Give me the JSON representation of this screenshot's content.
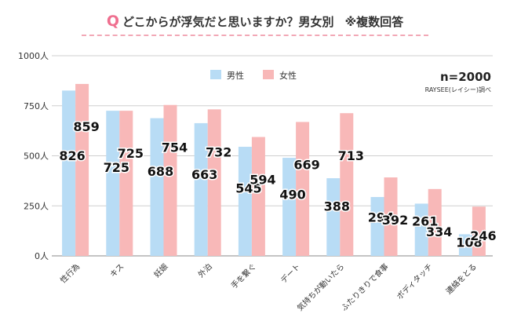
{
  "header": {
    "q_mark": "Q",
    "title": "どこからが浮気だと思いますか？男女別",
    "note": "※複数回答"
  },
  "sample": {
    "n": "n=2000",
    "source": "RAYSEE(レイシー)調べ"
  },
  "chart_data": {
    "type": "bar",
    "title": "どこからが浮気だと思いますか？男女別 ※複数回答",
    "categories": [
      "性行為",
      "キス",
      "妊娠",
      "外泊",
      "手を繋ぐ",
      "デート",
      "気持ちが動いたら",
      "ふたりきりで食事",
      "ボディタッチ",
      "連絡をとる"
    ],
    "series": [
      {
        "name": "男性",
        "color": "#b8dcf5",
        "values": [
          826,
          725,
          688,
          663,
          545,
          490,
          388,
          294,
          261,
          108
        ]
      },
      {
        "name": "女性",
        "color": "#f8b8b8",
        "values": [
          859,
          725,
          754,
          732,
          594,
          669,
          713,
          392,
          334,
          246
        ]
      }
    ],
    "yticks": [
      "0人",
      "250人",
      "500人",
      "750人",
      "1000人"
    ],
    "ylim": [
      0,
      1000
    ],
    "legend": "top-center",
    "grid": true
  }
}
